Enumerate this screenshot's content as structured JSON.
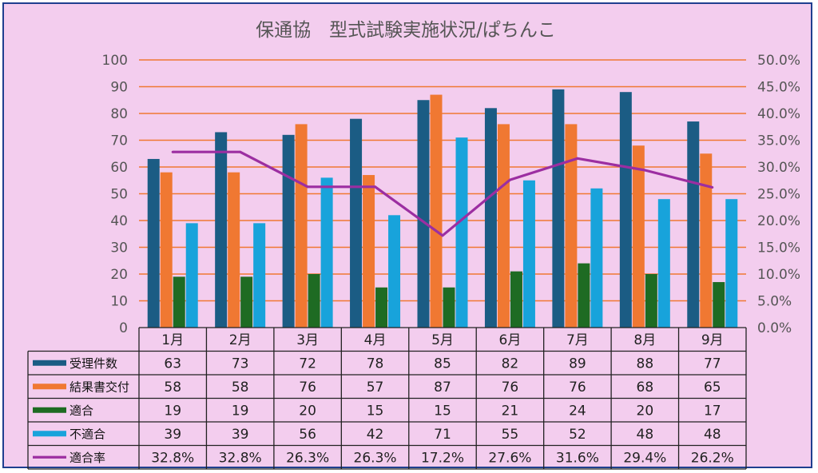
{
  "chart_data": {
    "type": "bar",
    "title": "保通協　型式試験実施状況/ぱちんこ",
    "categories": [
      "1月",
      "2月",
      "3月",
      "4月",
      "5月",
      "6月",
      "7月",
      "8月",
      "9月"
    ],
    "series": [
      {
        "name": "受理件数",
        "type": "bar",
        "axis": "left",
        "color": "#1b5c84",
        "values": [
          63,
          73,
          72,
          78,
          85,
          82,
          89,
          88,
          77
        ]
      },
      {
        "name": "結果書交付",
        "type": "bar",
        "axis": "left",
        "color": "#f07832",
        "values": [
          58,
          58,
          76,
          57,
          87,
          76,
          76,
          68,
          65
        ]
      },
      {
        "name": "適合",
        "type": "bar",
        "axis": "left",
        "color": "#1e6b23",
        "values": [
          19,
          19,
          20,
          15,
          15,
          21,
          24,
          20,
          17
        ]
      },
      {
        "name": "不適合",
        "type": "bar",
        "axis": "left",
        "color": "#18a3db",
        "values": [
          39,
          39,
          56,
          42,
          71,
          55,
          52,
          48,
          48
        ]
      },
      {
        "name": "適合率",
        "type": "line",
        "axis": "right",
        "color": "#9c2ea1",
        "values": [
          32.8,
          32.8,
          26.3,
          26.3,
          17.2,
          27.6,
          31.6,
          29.4,
          26.2
        ],
        "labels": [
          "32.8%",
          "32.8%",
          "26.3%",
          "26.3%",
          "17.2%",
          "27.6%",
          "31.6%",
          "29.4%",
          "26.2%"
        ]
      }
    ],
    "y_left": {
      "min": 0,
      "max": 100,
      "ticks": [
        "0",
        "10",
        "20",
        "30",
        "40",
        "50",
        "60",
        "70",
        "80",
        "90",
        "100"
      ]
    },
    "y_right": {
      "min": 0,
      "max": 50,
      "ticks": [
        "0.0%",
        "5.0%",
        "10.0%",
        "15.0%",
        "20.0%",
        "25.0%",
        "30.0%",
        "35.0%",
        "40.0%",
        "45.0%",
        "50.0%"
      ]
    },
    "grid": true,
    "grid_color": "#f07832",
    "legend_placement": "data-table"
  }
}
